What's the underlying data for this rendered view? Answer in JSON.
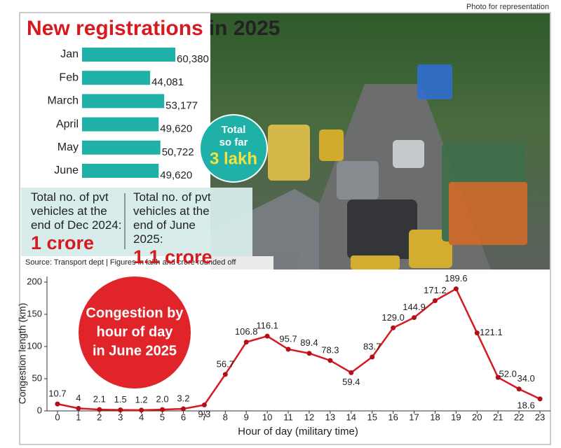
{
  "photo_credit": "Photo for representation",
  "badge": {
    "label": [
      "Total",
      "so far"
    ],
    "value": "3 lakh"
  },
  "stats": [
    {
      "label": "Total no. of pvt vehicles at the end of Dec 2024:",
      "value": "1 crore"
    },
    {
      "label": "Total no. of pvt vehicles at the end of June 2025:",
      "value": "1.1 crore"
    }
  ],
  "source": "Source: Transport dept | Figures in lakh and crore rounded off",
  "chart_data": [
    {
      "type": "bar",
      "orientation": "horizontal",
      "title": [
        "New registrations",
        "in 2025"
      ],
      "categories": [
        "Jan",
        "Feb",
        "March",
        "April",
        "May",
        "June"
      ],
      "values": [
        60380,
        44081,
        53177,
        49620,
        50722,
        49620
      ],
      "value_labels": [
        "60,380",
        "44,081",
        "53,177",
        "49,620",
        "50,722",
        "49,620"
      ],
      "color": "#1fb0a8"
    },
    {
      "type": "line",
      "title": [
        "Congestion by",
        "hour of day",
        "in June 2025"
      ],
      "x": [
        0,
        1,
        2,
        3,
        4,
        5,
        6,
        7,
        8,
        9,
        10,
        11,
        12,
        13,
        14,
        15,
        16,
        17,
        18,
        19,
        20,
        21,
        22,
        23
      ],
      "values": [
        10.7,
        4,
        2.1,
        1.5,
        1.2,
        2.0,
        3.2,
        9.3,
        56.7,
        106.8,
        116.1,
        95.7,
        89.4,
        78.3,
        59.4,
        83.7,
        129.0,
        144.9,
        171.2,
        189.6,
        121.1,
        52.0,
        34.0,
        18.6
      ],
      "value_labels": [
        "10.7",
        "4",
        "2.1",
        "1.5",
        "1.2",
        "2.0",
        "3.2",
        "9.3",
        "56.7",
        "106.8",
        "116.1",
        "95.7",
        "89.4",
        "78.3",
        "59.4",
        "83.7",
        "129.0",
        "144.9",
        "171.2",
        "189.6",
        "121.1",
        "52.0",
        "34.0",
        "18.6"
      ],
      "color": "#d71920",
      "marker_color": "#b01018",
      "xlabel": "Hour of day (military time)",
      "ylabel": "Congestion length (km)",
      "xlim": [
        -0.5,
        23.5
      ],
      "ylim": [
        0,
        200
      ],
      "xticks": [
        0,
        1,
        2,
        3,
        4,
        5,
        6,
        7,
        8,
        9,
        10,
        11,
        12,
        13,
        14,
        15,
        16,
        17,
        18,
        19,
        20,
        21,
        22,
        23
      ],
      "yticks": [
        0,
        50,
        100,
        150,
        200
      ],
      "grid": false
    }
  ]
}
